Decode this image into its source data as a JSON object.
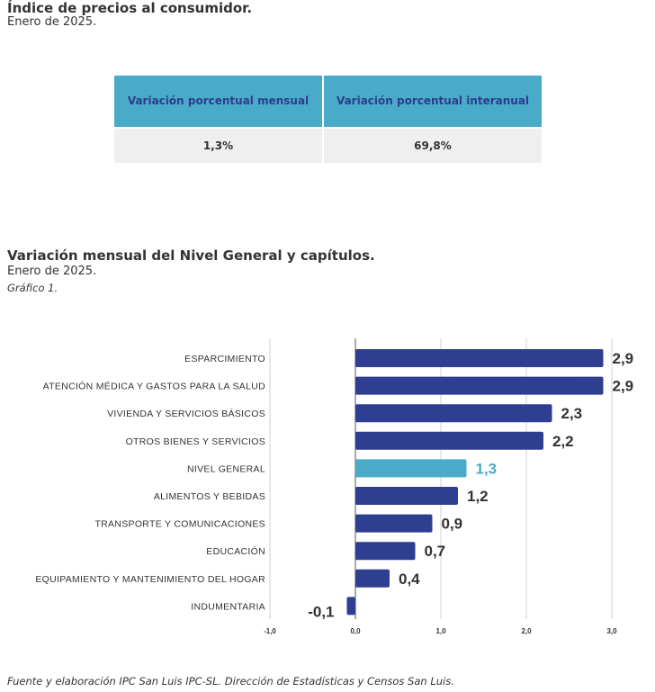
{
  "header": {
    "title": "Índice de precios al consumidor.",
    "subtitle": "Enero de 2025."
  },
  "kpi_table": {
    "col1_header": "Variación porcentual mensual",
    "col2_header": "Variación porcentual interanual",
    "col1_value": "1,3%",
    "col2_value": "69,8%"
  },
  "chart_section": {
    "title": "Variación mensual del Nivel General y capítulos.",
    "subtitle": "Enero de 2025.",
    "note": "Gráfico 1.",
    "source": "Fuente y elaboración IPC San Luis IPC-SL. Dirección de Estadísticas y Censos San Luis."
  },
  "chart_data": {
    "type": "bar",
    "orientation": "horizontal",
    "categories": [
      "ESPARCIMIENTO",
      "ATENCIÓN MÉDICA Y GASTOS PARA LA SALUD",
      "VIVIENDA Y SERVICIOS BÁSICOS",
      "OTROS BIENES Y SERVICIOS",
      "NIVEL GENERAL",
      "ALIMENTOS Y BEBIDAS",
      "TRANSPORTE Y COMUNICACIONES",
      "EDUCACIÓN",
      "EQUIPAMIENTO Y MANTENIMIENTO DEL HOGAR",
      "INDUMENTARIA"
    ],
    "values": [
      2.9,
      2.9,
      2.3,
      2.2,
      1.3,
      1.2,
      0.9,
      0.7,
      0.4,
      -0.1
    ],
    "value_labels": [
      "2,9",
      "2,9",
      "2,3",
      "2,2",
      "1,3",
      "1,2",
      "0,9",
      "0,7",
      "0,4",
      "-0,1"
    ],
    "highlight_index": 4,
    "xlim": [
      -1.0,
      3.0
    ],
    "x_ticks": [
      -1.0,
      0.0,
      1.0,
      2.0,
      3.0
    ],
    "x_tick_labels": [
      "-1,0",
      "0,0",
      "1,0",
      "2,0",
      "3,0"
    ],
    "grid": true,
    "colors": {
      "bar": "#2e3f92",
      "highlight": "#4aabc8",
      "highlight_label": "#4aabc8",
      "grid": "#d0d0d0"
    }
  }
}
